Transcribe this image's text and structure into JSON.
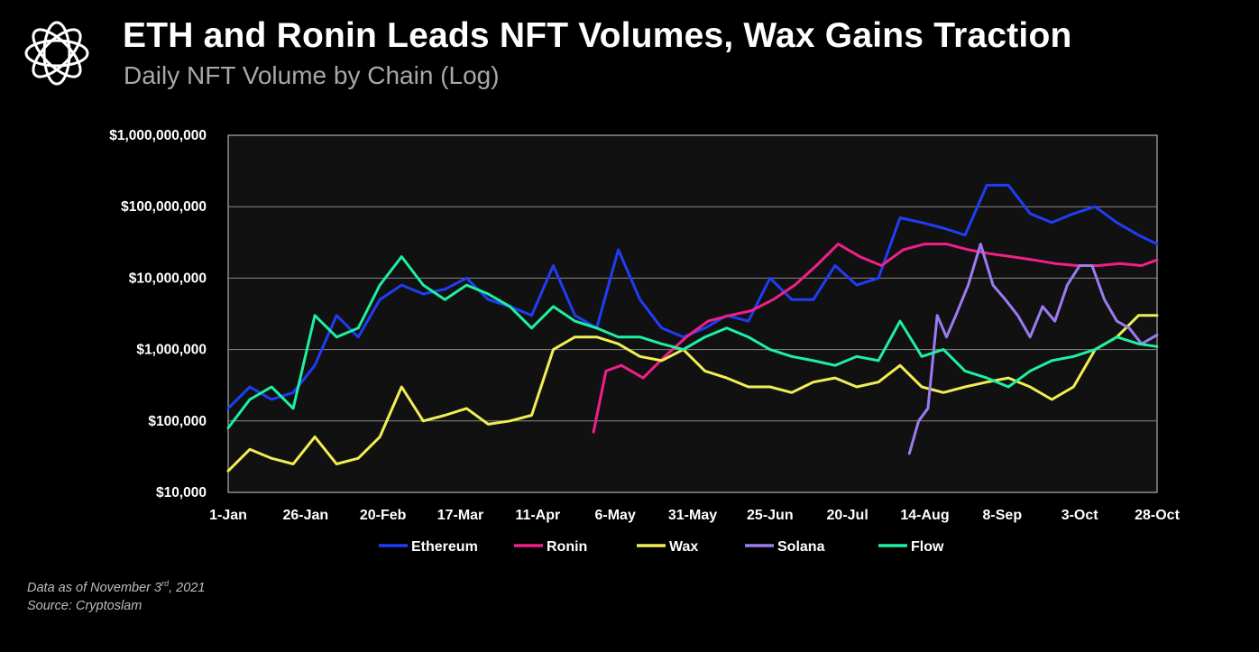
{
  "title": "ETH and Ronin Leads NFT Volumes, Wax Gains Traction",
  "subtitle": "Daily NFT Volume by Chain (Log)",
  "footnote": {
    "line1_prefix": "Data as of November 3",
    "line1_sup": "rd",
    "line1_suffix": ", 2021",
    "line2": "Source: Cryptoslam"
  },
  "chart_data": {
    "type": "line",
    "yscale": "log",
    "ylim": [
      10000,
      1000000000
    ],
    "y_ticks": [
      10000,
      100000,
      1000000,
      10000000,
      100000000,
      1000000000
    ],
    "y_tick_labels": [
      "$10,000",
      "$100,000",
      "$1,000,000",
      "$10,000,000",
      "$100,000,000",
      "$1,000,000,000"
    ],
    "xlim": [
      "2021-01-01",
      "2021-10-28"
    ],
    "x_ticks": [
      "2021-01-01",
      "2021-01-26",
      "2021-02-20",
      "2021-03-17",
      "2021-04-11",
      "2021-05-06",
      "2021-05-31",
      "2021-06-25",
      "2021-07-20",
      "2021-08-14",
      "2021-09-08",
      "2021-10-03",
      "2021-10-28"
    ],
    "x_tick_labels": [
      "1-Jan",
      "26-Jan",
      "20-Feb",
      "17-Mar",
      "11-Apr",
      "6-May",
      "31-May",
      "25-Jun",
      "20-Jul",
      "14-Aug",
      "8-Sep",
      "3-Oct",
      "28-Oct"
    ],
    "grid": "horizontal",
    "legend": "bottom",
    "background": "#111111",
    "series": [
      {
        "name": "Ethereum",
        "color": "#1f3df5",
        "x": [
          "2021-01-01",
          "2021-01-08",
          "2021-01-15",
          "2021-01-22",
          "2021-01-29",
          "2021-02-05",
          "2021-02-12",
          "2021-02-19",
          "2021-02-26",
          "2021-03-05",
          "2021-03-12",
          "2021-03-19",
          "2021-03-26",
          "2021-04-02",
          "2021-04-09",
          "2021-04-16",
          "2021-04-23",
          "2021-04-30",
          "2021-05-07",
          "2021-05-14",
          "2021-05-21",
          "2021-05-28",
          "2021-06-04",
          "2021-06-11",
          "2021-06-18",
          "2021-06-25",
          "2021-07-02",
          "2021-07-09",
          "2021-07-16",
          "2021-07-23",
          "2021-07-30",
          "2021-08-06",
          "2021-08-13",
          "2021-08-20",
          "2021-08-27",
          "2021-09-03",
          "2021-09-10",
          "2021-09-17",
          "2021-09-24",
          "2021-10-01",
          "2021-10-08",
          "2021-10-15",
          "2021-10-22",
          "2021-10-28"
        ],
        "y": [
          150000,
          300000,
          200000,
          250000,
          600000,
          3000000,
          1500000,
          5000000,
          8000000,
          6000000,
          7000000,
          10000000,
          5000000,
          4000000,
          3000000,
          15000000,
          3000000,
          2000000,
          25000000,
          5000000,
          2000000,
          1500000,
          2000000,
          3000000,
          2500000,
          10000000,
          5000000,
          5000000,
          15000000,
          8000000,
          10000000,
          70000000,
          60000000,
          50000000,
          40000000,
          200000000,
          200000000,
          80000000,
          60000000,
          80000000,
          100000000,
          60000000,
          40000000,
          30000000
        ]
      },
      {
        "name": "Ronin",
        "color": "#f0208a",
        "x": [
          "2021-04-29",
          "2021-05-03",
          "2021-05-08",
          "2021-05-15",
          "2021-05-22",
          "2021-05-29",
          "2021-06-05",
          "2021-06-12",
          "2021-06-19",
          "2021-06-26",
          "2021-07-03",
          "2021-07-10",
          "2021-07-17",
          "2021-07-24",
          "2021-07-31",
          "2021-08-07",
          "2021-08-14",
          "2021-08-21",
          "2021-08-28",
          "2021-09-04",
          "2021-09-11",
          "2021-09-18",
          "2021-09-25",
          "2021-10-02",
          "2021-10-09",
          "2021-10-16",
          "2021-10-23",
          "2021-10-28"
        ],
        "y": [
          70000,
          500000,
          600000,
          400000,
          800000,
          1500000,
          2500000,
          3000000,
          3500000,
          5000000,
          8000000,
          15000000,
          30000000,
          20000000,
          15000000,
          25000000,
          30000000,
          30000000,
          25000000,
          22000000,
          20000000,
          18000000,
          16000000,
          15000000,
          15000000,
          16000000,
          15000000,
          18000000
        ]
      },
      {
        "name": "Wax",
        "color": "#f2ee55",
        "x": [
          "2021-01-01",
          "2021-01-08",
          "2021-01-15",
          "2021-01-22",
          "2021-01-29",
          "2021-02-05",
          "2021-02-12",
          "2021-02-19",
          "2021-02-26",
          "2021-03-05",
          "2021-03-12",
          "2021-03-19",
          "2021-03-26",
          "2021-04-02",
          "2021-04-09",
          "2021-04-16",
          "2021-04-23",
          "2021-04-30",
          "2021-05-07",
          "2021-05-14",
          "2021-05-21",
          "2021-05-28",
          "2021-06-04",
          "2021-06-11",
          "2021-06-18",
          "2021-06-25",
          "2021-07-02",
          "2021-07-09",
          "2021-07-16",
          "2021-07-23",
          "2021-07-30",
          "2021-08-06",
          "2021-08-13",
          "2021-08-20",
          "2021-08-27",
          "2021-09-03",
          "2021-09-10",
          "2021-09-17",
          "2021-09-24",
          "2021-10-01",
          "2021-10-08",
          "2021-10-15",
          "2021-10-22",
          "2021-10-28"
        ],
        "y": [
          20000,
          40000,
          30000,
          25000,
          60000,
          25000,
          30000,
          60000,
          300000,
          100000,
          120000,
          150000,
          90000,
          100000,
          120000,
          1000000,
          1500000,
          1500000,
          1200000,
          800000,
          700000,
          1000000,
          500000,
          400000,
          300000,
          300000,
          250000,
          350000,
          400000,
          300000,
          350000,
          600000,
          300000,
          250000,
          300000,
          350000,
          400000,
          300000,
          200000,
          300000,
          1000000,
          1500000,
          3000000,
          3000000
        ]
      },
      {
        "name": "Solana",
        "color": "#9b7cf0",
        "x": [
          "2021-08-09",
          "2021-08-12",
          "2021-08-15",
          "2021-08-18",
          "2021-08-21",
          "2021-08-24",
          "2021-08-28",
          "2021-09-01",
          "2021-09-05",
          "2021-09-09",
          "2021-09-13",
          "2021-09-17",
          "2021-09-21",
          "2021-09-25",
          "2021-09-29",
          "2021-10-03",
          "2021-10-07",
          "2021-10-11",
          "2021-10-15",
          "2021-10-19",
          "2021-10-23",
          "2021-10-28"
        ],
        "y": [
          35000,
          100000,
          150000,
          3000000,
          1500000,
          3000000,
          8000000,
          30000000,
          8000000,
          5000000,
          3000000,
          1500000,
          4000000,
          2500000,
          8000000,
          15000000,
          15000000,
          5000000,
          2500000,
          2000000,
          1200000,
          1600000
        ]
      },
      {
        "name": "Flow",
        "color": "#1ff0a0",
        "x": [
          "2021-01-01",
          "2021-01-08",
          "2021-01-15",
          "2021-01-22",
          "2021-01-29",
          "2021-02-05",
          "2021-02-12",
          "2021-02-19",
          "2021-02-26",
          "2021-03-05",
          "2021-03-12",
          "2021-03-19",
          "2021-03-26",
          "2021-04-02",
          "2021-04-09",
          "2021-04-16",
          "2021-04-23",
          "2021-04-30",
          "2021-05-07",
          "2021-05-14",
          "2021-05-21",
          "2021-05-28",
          "2021-06-04",
          "2021-06-11",
          "2021-06-18",
          "2021-06-25",
          "2021-07-02",
          "2021-07-09",
          "2021-07-16",
          "2021-07-23",
          "2021-07-30",
          "2021-08-06",
          "2021-08-13",
          "2021-08-20",
          "2021-08-27",
          "2021-09-03",
          "2021-09-10",
          "2021-09-17",
          "2021-09-24",
          "2021-10-01",
          "2021-10-08",
          "2021-10-15",
          "2021-10-22",
          "2021-10-28"
        ],
        "y": [
          80000,
          200000,
          300000,
          150000,
          3000000,
          1500000,
          2000000,
          8000000,
          20000000,
          8000000,
          5000000,
          8000000,
          6000000,
          4000000,
          2000000,
          4000000,
          2500000,
          2000000,
          1500000,
          1500000,
          1200000,
          1000000,
          1500000,
          2000000,
          1500000,
          1000000,
          800000,
          700000,
          600000,
          800000,
          700000,
          2500000,
          800000,
          1000000,
          500000,
          400000,
          300000,
          500000,
          700000,
          800000,
          1000000,
          1500000,
          1200000,
          1100000
        ]
      }
    ]
  }
}
